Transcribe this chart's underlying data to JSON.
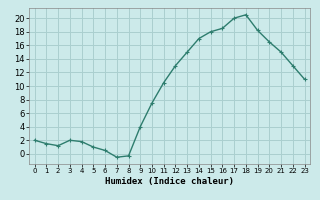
{
  "x": [
    0,
    1,
    2,
    3,
    4,
    5,
    6,
    7,
    8,
    9,
    10,
    11,
    12,
    13,
    14,
    15,
    16,
    17,
    18,
    19,
    20,
    21,
    22,
    23
  ],
  "y": [
    2.0,
    1.5,
    1.2,
    2.0,
    1.8,
    1.0,
    0.5,
    -0.5,
    -0.3,
    4.0,
    7.5,
    10.5,
    13.0,
    15.0,
    17.0,
    18.0,
    18.5,
    20.0,
    20.5,
    18.2,
    16.5,
    15.0,
    13.0,
    11.0
  ],
  "line_color": "#2e7d6e",
  "marker": "+",
  "marker_size": 3,
  "bg_color": "#cceaea",
  "grid_color": "#aacfcf",
  "xlabel": "Humidex (Indice chaleur)",
  "xlim": [
    -0.5,
    23.5
  ],
  "ylim": [
    -1.5,
    21.5
  ],
  "yticks": [
    0,
    2,
    4,
    6,
    8,
    10,
    12,
    14,
    16,
    18,
    20
  ],
  "xticks": [
    0,
    1,
    2,
    3,
    4,
    5,
    6,
    7,
    8,
    9,
    10,
    11,
    12,
    13,
    14,
    15,
    16,
    17,
    18,
    19,
    20,
    21,
    22,
    23
  ]
}
